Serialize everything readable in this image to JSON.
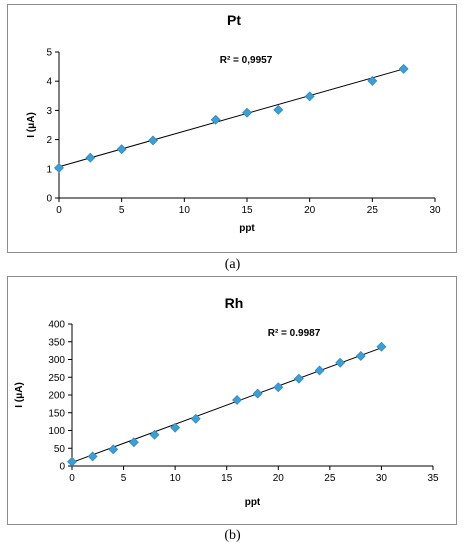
{
  "chart_data": [
    {
      "type": "scatter",
      "title": "Pt",
      "xlabel": "ppt",
      "ylabel": "I (μA)",
      "annotation": "R² = 0,9957",
      "caption": "(a)",
      "xlim": [
        0,
        30
      ],
      "ylim": [
        0,
        5
      ],
      "xticks": [
        0,
        5,
        10,
        15,
        20,
        25,
        30
      ],
      "yticks": [
        0,
        1,
        2,
        3,
        4,
        5
      ],
      "grid": false,
      "marker_color": "#3a9fd8",
      "x": [
        0,
        2.5,
        5,
        7.5,
        12.5,
        15,
        17.5,
        20,
        25,
        27.5
      ],
      "y": [
        1.03,
        1.38,
        1.67,
        1.97,
        2.68,
        2.92,
        3.02,
        3.48,
        4.01,
        4.42
      ],
      "trendline": [
        [
          0,
          1.07
        ],
        [
          27.5,
          4.42
        ]
      ]
    },
    {
      "type": "scatter",
      "title": "Rh",
      "xlabel": "ppt",
      "ylabel": "I (μA)",
      "annotation": "R² = 0.9987",
      "caption": "(b)",
      "xlim": [
        0,
        35
      ],
      "ylim": [
        0,
        400
      ],
      "xticks": [
        0,
        5,
        10,
        15,
        20,
        25,
        30,
        35
      ],
      "yticks": [
        0,
        50,
        100,
        150,
        200,
        250,
        300,
        350,
        400
      ],
      "grid": false,
      "marker_color": "#3a9fd8",
      "x": [
        0,
        2,
        4,
        6,
        8,
        10,
        12,
        16,
        18,
        20,
        22,
        24,
        26,
        28,
        30
      ],
      "y": [
        12,
        27,
        47,
        67,
        88,
        108,
        133,
        186,
        204,
        222,
        246,
        269,
        291,
        310,
        336
      ],
      "trendline": [
        [
          0,
          10
        ],
        [
          30,
          333
        ]
      ]
    }
  ]
}
